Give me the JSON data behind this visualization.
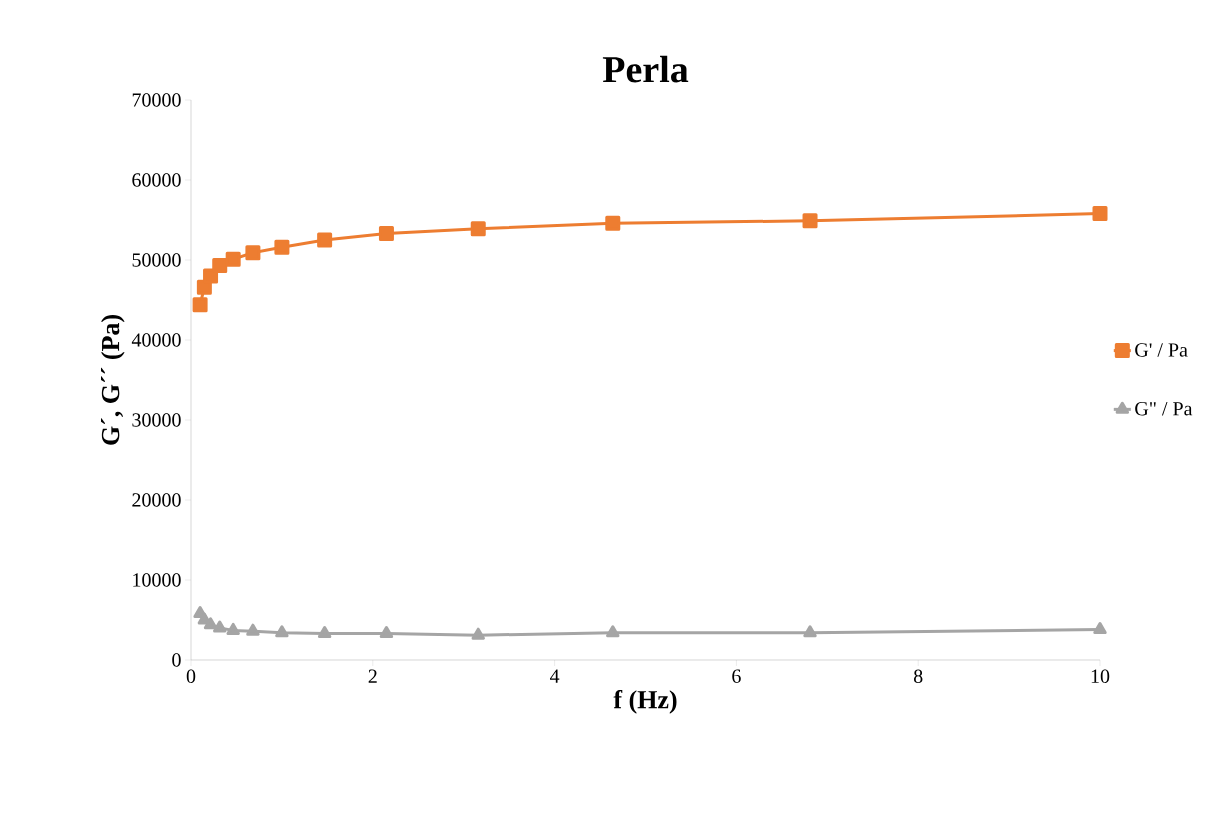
{
  "chart_data": {
    "type": "line",
    "title": "Perla",
    "xlabel": "f (Hz)",
    "ylabel": "G´, G´´ (Pa)",
    "x": [
      0.1,
      0.147,
      0.215,
      0.316,
      0.464,
      0.681,
      1,
      1.47,
      2.15,
      3.16,
      4.64,
      6.81,
      10
    ],
    "series": [
      {
        "name": "G' / Pa",
        "color": "#ed7d31",
        "marker": "square",
        "values": [
          44400,
          46600,
          48000,
          49300,
          50100,
          50900,
          51600,
          52500,
          53300,
          53900,
          54600,
          54900,
          55800
        ]
      },
      {
        "name": "G\" / Pa",
        "color": "#a5a5a5",
        "marker": "triangle",
        "values": [
          5800,
          5000,
          4400,
          4000,
          3700,
          3600,
          3400,
          3300,
          3300,
          3100,
          3400,
          3400,
          3800
        ]
      }
    ],
    "xlim": [
      0,
      10
    ],
    "xticks": [
      0,
      2,
      4,
      6,
      8,
      10
    ],
    "ylim": [
      0,
      70000
    ],
    "yticks": [
      0,
      10000,
      20000,
      30000,
      40000,
      50000,
      60000,
      70000
    ],
    "grid": false,
    "legend": "right",
    "line_style": "solid"
  }
}
